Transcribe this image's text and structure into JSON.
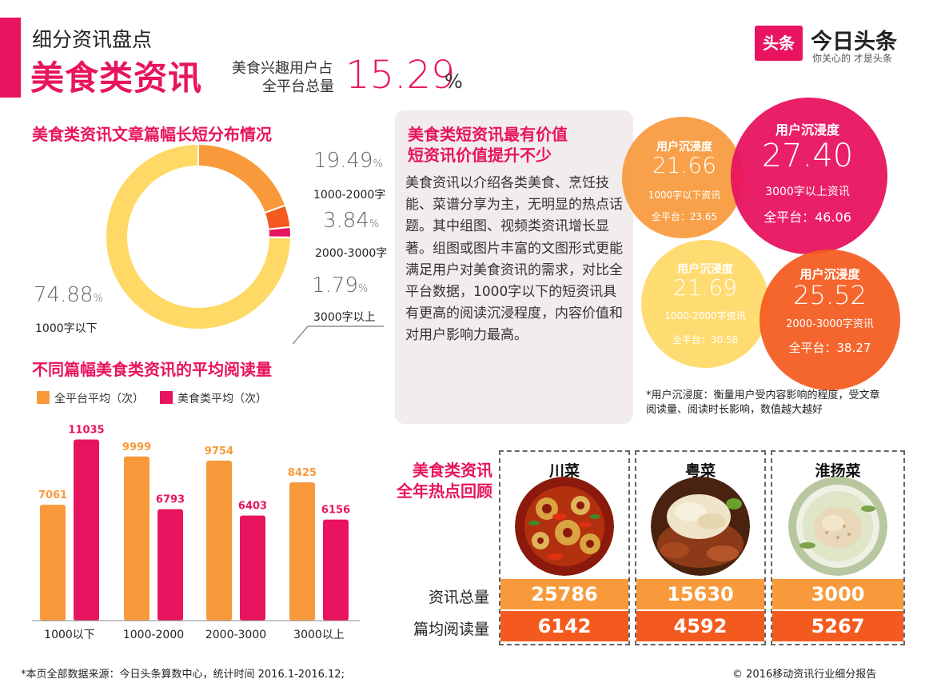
{
  "header": {
    "kicker": "细分资讯盘点",
    "title": "美食类资讯",
    "share_label_1": "美食兴趣用户占",
    "share_label_2": "全平台总量",
    "share_value": "15.29",
    "share_unit": "%"
  },
  "logo": {
    "box_text": "头条",
    "name": "今日头条",
    "slogan": "你关心的 才是头条"
  },
  "donut_section": {
    "title": "美食类资讯文章篇幅长短分布情况"
  },
  "bar_section": {
    "title": "不同篇幅美食类资讯的平均阅读量",
    "legend": [
      "全平台平均（次）",
      "美食类平均（次）"
    ]
  },
  "chart_data": [
    {
      "type": "pie",
      "title": "美食类资讯文章篇幅长短分布情况",
      "categories": [
        "1000字以下",
        "1000-2000字",
        "2000-3000字",
        "3000字以上"
      ],
      "values": [
        74.88,
        19.49,
        3.84,
        1.79
      ],
      "unit": "%",
      "colors": [
        "#ffd966",
        "#f89a3c",
        "#f45a1e",
        "#e8145f"
      ]
    },
    {
      "type": "bar",
      "title": "不同篇幅美食类资讯的平均阅读量",
      "categories": [
        "1000以下",
        "1000-2000",
        "2000-3000",
        "3000以上"
      ],
      "series": [
        {
          "name": "全平台平均（次）",
          "values": [
            7061,
            9999,
            9754,
            8425
          ],
          "color": "#f89a3c"
        },
        {
          "name": "美食类平均（次）",
          "values": [
            11035,
            6793,
            6403,
            6156
          ],
          "color": "#e8145f"
        }
      ],
      "ylim": [
        0,
        11500
      ]
    }
  ],
  "textbox": {
    "heading_1": "美食类短资讯最有价值",
    "heading_2": "短资讯价值提升不少",
    "body": "美食资讯以介绍各类美食、烹饪技能、菜谱分享为主，无明显的热点话题。其中组图、视频类资讯增长显著。组图或图片丰富的文图形式更能满足用户对美食资讯的需求，对比全平台数据，1000字以下的短资讯具有更高的阅读沉浸程度，内容价值和对用户影响力最高。"
  },
  "bubbles": [
    {
      "label": "用户沉浸度",
      "value": "21.66",
      "category": "1000字以下资讯",
      "platform": "全平台：23.65",
      "color": "#f89a3c"
    },
    {
      "label": "用户沉浸度",
      "value": "27.40",
      "category": "3000字以上资讯",
      "platform": "全平台：46.06",
      "color": "#e8145f"
    },
    {
      "label": "用户沉浸度",
      "value": "21.69",
      "category": "1000-2000字资讯",
      "platform": "全平台：30.58",
      "color": "#ffd966"
    },
    {
      "label": "用户沉浸度",
      "value": "25.52",
      "category": "2000-3000字资讯",
      "platform": "全平台：38.27",
      "color": "#f45a1e"
    }
  ],
  "note": "*用户沉浸度：衡量用户受内容影响的程度，受文章阅读量、阅读时长影响，数值越大越好",
  "hot_review": {
    "title_1": "美食类资讯",
    "title_2": "全年热点回顾",
    "row_labels": [
      "资讯总量",
      "篇均阅读量"
    ],
    "cuisines": [
      {
        "name": "川菜",
        "total": "25786",
        "avg": "6142"
      },
      {
        "name": "粤菜",
        "total": "15630",
        "avg": "4592"
      },
      {
        "name": "淮扬菜",
        "total": "3000",
        "avg": "5267"
      }
    ]
  },
  "footer": {
    "source": "*本页全部数据来源：今日头条算数中心，统计时间 2016.1-2016.12;",
    "copyright": "© 2016移动资讯行业细分报告"
  }
}
